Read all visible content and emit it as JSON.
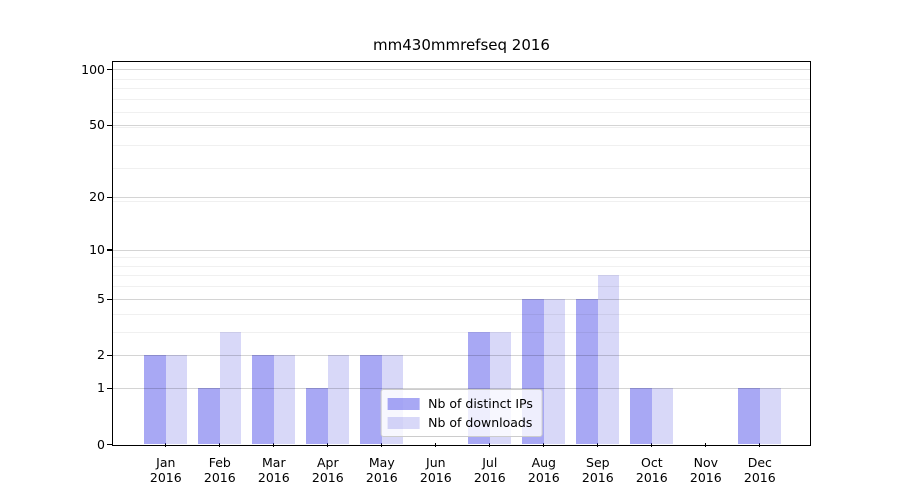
{
  "chart_data": {
    "type": "bar",
    "title": "mm430mmrefseq 2016",
    "categories": [
      "Jan",
      "Feb",
      "Mar",
      "Apr",
      "May",
      "Jun",
      "Jul",
      "Aug",
      "Sep",
      "Oct",
      "Nov",
      "Dec"
    ],
    "year_label": "2016",
    "series": [
      {
        "name": "Nb of distinct IPs",
        "color_hex": "#a8a8f4",
        "color_rgba": "rgba(81,81,233,0.5)",
        "values": [
          2,
          1,
          2,
          1,
          2,
          0,
          3,
          5,
          5,
          1,
          0,
          1
        ]
      },
      {
        "name": "Nb of downloads",
        "color_hex": "#d8d8f8",
        "color_rgba": "rgba(99,99,227,0.25)",
        "values": [
          2,
          3,
          2,
          2,
          2,
          0,
          3,
          5,
          7,
          1,
          0,
          1
        ]
      }
    ],
    "y_ticks": [
      0,
      1,
      2,
      5,
      10,
      20,
      50,
      100
    ],
    "y_minor_gridlines": [
      3,
      4,
      6,
      7,
      8,
      9,
      19,
      29,
      39,
      49,
      59,
      69,
      79,
      89
    ],
    "y_scale": "log(value+1)",
    "ylim": [
      0,
      100
    ],
    "grid": true,
    "legend_position": "lower center"
  }
}
